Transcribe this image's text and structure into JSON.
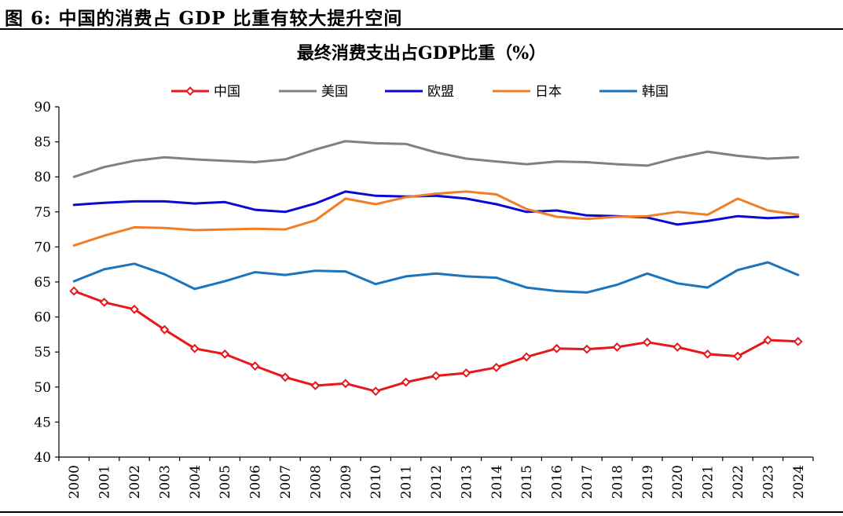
{
  "figure": {
    "title": "图 6:  中国的消费占 GDP 比重有较大提升空间"
  },
  "chart_data": {
    "type": "line",
    "title": "最终消费支出占GDP比重（%）",
    "xlabel": "",
    "ylabel": "",
    "ylim": [
      40,
      90
    ],
    "yticks": [
      "40",
      "45",
      "50",
      "55",
      "60",
      "65",
      "70",
      "75",
      "80",
      "85",
      "90"
    ],
    "categories": [
      "2000",
      "2001",
      "2002",
      "2003",
      "2004",
      "2005",
      "2006",
      "2007",
      "2008",
      "2009",
      "2010",
      "2011",
      "2012",
      "2013",
      "2014",
      "2015",
      "2016",
      "2017",
      "2018",
      "2019",
      "2020",
      "2021",
      "2022",
      "2023",
      "2024"
    ],
    "legend_position": "top",
    "grid": false,
    "series": [
      {
        "name": "中国",
        "color": "#e8171b",
        "marker": "diamond",
        "values": [
          63.7,
          62.1,
          61.1,
          58.2,
          55.5,
          54.7,
          53.0,
          51.4,
          50.2,
          50.5,
          49.4,
          50.7,
          51.6,
          52.0,
          52.8,
          54.3,
          55.5,
          55.4,
          55.7,
          56.4,
          55.7,
          54.7,
          54.4,
          56.7,
          56.5
        ]
      },
      {
        "name": "美国",
        "color": "#808080",
        "marker": "none",
        "values": [
          80.0,
          81.4,
          82.3,
          82.8,
          82.5,
          82.3,
          82.1,
          82.5,
          83.9,
          85.1,
          84.8,
          84.7,
          83.5,
          82.6,
          82.2,
          81.8,
          82.2,
          82.1,
          81.8,
          81.6,
          82.7,
          83.6,
          83.0,
          82.6,
          82.8
        ]
      },
      {
        "name": "欧盟",
        "color": "#0a0ad2",
        "marker": "none",
        "values": [
          76.0,
          76.3,
          76.5,
          76.5,
          76.2,
          76.4,
          75.3,
          75.0,
          76.2,
          77.9,
          77.3,
          77.2,
          77.3,
          76.9,
          76.1,
          75.0,
          75.2,
          74.5,
          74.4,
          74.2,
          73.2,
          73.7,
          74.4,
          74.1,
          74.3
        ]
      },
      {
        "name": "日本",
        "color": "#f07d28",
        "marker": "none",
        "values": [
          70.2,
          71.6,
          72.8,
          72.7,
          72.4,
          72.5,
          72.6,
          72.5,
          73.8,
          76.9,
          76.1,
          77.1,
          77.6,
          77.9,
          77.5,
          75.4,
          74.3,
          74.0,
          74.3,
          74.4,
          75.0,
          74.6,
          76.9,
          75.2,
          74.6
        ]
      },
      {
        "name": "韩国",
        "color": "#1c75bc",
        "marker": "none",
        "values": [
          65.1,
          66.8,
          67.6,
          66.1,
          64.0,
          65.1,
          66.4,
          66.0,
          66.6,
          66.5,
          64.7,
          65.8,
          66.2,
          65.8,
          65.6,
          64.2,
          63.7,
          63.5,
          64.6,
          66.2,
          64.8,
          64.2,
          66.7,
          67.8,
          66.0
        ]
      }
    ]
  }
}
